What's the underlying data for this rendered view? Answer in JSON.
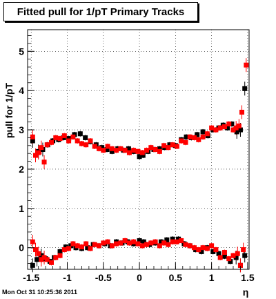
{
  "title": "Fitted pull for 1/pT  Primary Tracks",
  "timestamp": "Mon Oct 31 10:25:36 2011",
  "chart_data": {
    "type": "scatter",
    "xlabel": "η",
    "ylabel": "pull for 1/pT",
    "xlim": [
      -1.55,
      1.52
    ],
    "ylim": [
      -0.55,
      5.55
    ],
    "grid": true,
    "x_ticks": [
      "-1.5",
      "-1",
      "-0.5",
      "0",
      "0.5",
      "1",
      "1.5"
    ],
    "y_ticks": [
      "0",
      "1",
      "2",
      "3",
      "4",
      "5"
    ],
    "series": [
      {
        "color": "#000000",
        "points": [
          [
            -1.48,
            2.72
          ],
          [
            -1.4,
            2.45
          ],
          [
            -1.34,
            2.5
          ],
          [
            -1.27,
            2.62
          ],
          [
            -1.2,
            2.72
          ],
          [
            -1.12,
            2.75
          ],
          [
            -1.05,
            2.8
          ],
          [
            -0.98,
            2.78
          ],
          [
            -0.9,
            2.88
          ],
          [
            -0.82,
            2.9
          ],
          [
            -0.75,
            2.8
          ],
          [
            -0.68,
            2.7
          ],
          [
            -0.6,
            2.62
          ],
          [
            -0.52,
            2.55
          ],
          [
            -0.45,
            2.5
          ],
          [
            -0.38,
            2.45
          ],
          [
            -0.3,
            2.52
          ],
          [
            -0.22,
            2.48
          ],
          [
            -0.15,
            2.52
          ],
          [
            -0.08,
            2.45
          ],
          [
            0.0,
            2.32
          ],
          [
            0.05,
            2.35
          ],
          [
            0.12,
            2.45
          ],
          [
            0.2,
            2.5
          ],
          [
            0.28,
            2.52
          ],
          [
            0.35,
            2.55
          ],
          [
            0.42,
            2.62
          ],
          [
            0.5,
            2.6
          ],
          [
            0.58,
            2.75
          ],
          [
            0.65,
            2.82
          ],
          [
            0.72,
            2.8
          ],
          [
            0.8,
            2.88
          ],
          [
            0.88,
            2.95
          ],
          [
            0.95,
            2.85
          ],
          [
            1.02,
            3.0
          ],
          [
            1.1,
            3.05
          ],
          [
            1.16,
            3.12
          ],
          [
            1.22,
            3.05
          ],
          [
            1.28,
            3.15
          ],
          [
            1.35,
            2.95
          ],
          [
            1.4,
            3.0
          ],
          [
            1.46,
            4.05
          ],
          [
            -1.48,
            -0.45
          ],
          [
            -1.42,
            -0.3
          ],
          [
            -1.36,
            -0.2
          ],
          [
            -1.3,
            -0.28
          ],
          [
            -1.24,
            -0.35
          ],
          [
            -1.18,
            -0.25
          ],
          [
            -1.1,
            -0.1
          ],
          [
            -1.02,
            0.02
          ],
          [
            -0.95,
            0.05
          ],
          [
            -0.88,
            0.0
          ],
          [
            -0.8,
            -0.02
          ],
          [
            -0.72,
            0.0
          ],
          [
            -0.64,
            0.08
          ],
          [
            -0.56,
            0.05
          ],
          [
            -0.48,
            0.1
          ],
          [
            -0.4,
            0.05
          ],
          [
            -0.32,
            0.15
          ],
          [
            -0.24,
            0.12
          ],
          [
            -0.16,
            0.15
          ],
          [
            -0.08,
            0.1
          ],
          [
            0.0,
            0.18
          ],
          [
            0.06,
            0.15
          ],
          [
            0.14,
            0.08
          ],
          [
            0.22,
            0.12
          ],
          [
            0.3,
            0.15
          ],
          [
            0.38,
            0.2
          ],
          [
            0.46,
            0.22
          ],
          [
            0.54,
            0.22
          ],
          [
            0.62,
            0.1
          ],
          [
            0.7,
            0.05
          ],
          [
            0.78,
            -0.05
          ],
          [
            0.86,
            -0.1
          ],
          [
            0.94,
            0.0
          ],
          [
            1.02,
            -0.1
          ],
          [
            1.1,
            -0.15
          ],
          [
            1.18,
            -0.22
          ],
          [
            1.26,
            -0.35
          ],
          [
            1.34,
            -0.25
          ],
          [
            1.4,
            -0.45
          ],
          [
            1.46,
            -0.2
          ]
        ]
      },
      {
        "color": "#ff0000",
        "points": [
          [
            -1.48,
            2.82
          ],
          [
            -1.44,
            2.35
          ],
          [
            -1.4,
            2.42
          ],
          [
            -1.36,
            2.55
          ],
          [
            -1.32,
            2.18
          ],
          [
            -1.28,
            2.62
          ],
          [
            -1.22,
            2.68
          ],
          [
            -1.16,
            2.8
          ],
          [
            -1.1,
            2.78
          ],
          [
            -1.04,
            2.85
          ],
          [
            -0.98,
            2.72
          ],
          [
            -0.92,
            2.82
          ],
          [
            -0.86,
            2.72
          ],
          [
            -0.8,
            2.65
          ],
          [
            -0.74,
            2.62
          ],
          [
            -0.68,
            2.72
          ],
          [
            -0.62,
            2.58
          ],
          [
            -0.56,
            2.52
          ],
          [
            -0.5,
            2.48
          ],
          [
            -0.44,
            2.58
          ],
          [
            -0.38,
            2.52
          ],
          [
            -0.32,
            2.48
          ],
          [
            -0.26,
            2.52
          ],
          [
            -0.2,
            2.48
          ],
          [
            -0.14,
            2.42
          ],
          [
            -0.08,
            2.48
          ],
          [
            -0.02,
            2.45
          ],
          [
            0.04,
            2.42
          ],
          [
            0.1,
            2.48
          ],
          [
            0.16,
            2.55
          ],
          [
            0.22,
            2.5
          ],
          [
            0.28,
            2.45
          ],
          [
            0.34,
            2.6
          ],
          [
            0.4,
            2.55
          ],
          [
            0.46,
            2.62
          ],
          [
            0.52,
            2.58
          ],
          [
            0.58,
            2.72
          ],
          [
            0.64,
            2.68
          ],
          [
            0.7,
            2.82
          ],
          [
            0.76,
            2.8
          ],
          [
            0.82,
            2.75
          ],
          [
            0.88,
            2.82
          ],
          [
            0.94,
            2.9
          ],
          [
            1.0,
            3.05
          ],
          [
            1.06,
            3.0
          ],
          [
            1.12,
            3.05
          ],
          [
            1.18,
            3.08
          ],
          [
            1.24,
            3.15
          ],
          [
            1.3,
            3.0
          ],
          [
            1.34,
            3.05
          ],
          [
            1.38,
            3.1
          ],
          [
            1.42,
            3.45
          ],
          [
            1.48,
            4.65
          ],
          [
            -1.48,
            0.15
          ],
          [
            -1.44,
            -0.05
          ],
          [
            -1.4,
            -0.15
          ],
          [
            -1.36,
            -0.3
          ],
          [
            -1.32,
            -0.25
          ],
          [
            -1.28,
            -0.3
          ],
          [
            -1.22,
            -0.38
          ],
          [
            -1.16,
            -0.25
          ],
          [
            -1.1,
            -0.2
          ],
          [
            -1.04,
            -0.05
          ],
          [
            -0.98,
            -0.02
          ],
          [
            -0.92,
            0.1
          ],
          [
            -0.86,
            0.05
          ],
          [
            -0.8,
            0.02
          ],
          [
            -0.74,
            0.1
          ],
          [
            -0.68,
            -0.02
          ],
          [
            -0.62,
            0.08
          ],
          [
            -0.56,
            0.05
          ],
          [
            -0.5,
            0.12
          ],
          [
            -0.44,
            0.15
          ],
          [
            -0.38,
            0.05
          ],
          [
            -0.32,
            0.1
          ],
          [
            -0.26,
            0.12
          ],
          [
            -0.2,
            0.18
          ],
          [
            -0.14,
            0.12
          ],
          [
            -0.08,
            0.15
          ],
          [
            -0.02,
            0.1
          ],
          [
            0.04,
            0.05
          ],
          [
            0.1,
            0.08
          ],
          [
            0.16,
            0.12
          ],
          [
            0.22,
            0.15
          ],
          [
            0.28,
            0.05
          ],
          [
            0.34,
            0.12
          ],
          [
            0.4,
            0.08
          ],
          [
            0.46,
            0.15
          ],
          [
            0.52,
            0.15
          ],
          [
            0.58,
            0.18
          ],
          [
            0.64,
            0.08
          ],
          [
            0.7,
            0.05
          ],
          [
            0.76,
            0.0
          ],
          [
            0.82,
            -0.05
          ],
          [
            0.88,
            0.0
          ],
          [
            0.94,
            -0.02
          ],
          [
            1.0,
            0.05
          ],
          [
            1.06,
            -0.05
          ],
          [
            1.12,
            -0.25
          ],
          [
            1.18,
            -0.12
          ],
          [
            1.24,
            -0.28
          ],
          [
            1.3,
            -0.2
          ],
          [
            1.36,
            -0.15
          ],
          [
            1.4,
            -0.45
          ],
          [
            1.44,
            -0.05
          ]
        ]
      }
    ]
  }
}
